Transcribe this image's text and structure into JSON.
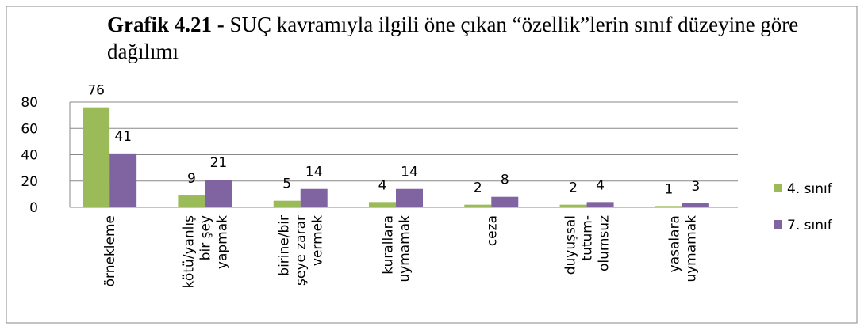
{
  "chart_data": {
    "type": "bar",
    "title_label": "Grafik 4.21 -",
    "title": "SUÇ kavramıyla ilgili öne çıkan “özellik”lerin sınıf düzeyine göre dağılımı",
    "categories": [
      [
        "örnekleme"
      ],
      [
        "kötü/yanlış",
        "bir şey",
        "yapmak"
      ],
      [
        "birine/bir",
        "şeye zarar",
        "vermek"
      ],
      [
        "kurallara",
        "uymamak"
      ],
      [
        "ceza"
      ],
      [
        "duyuşsal",
        "tutum-",
        "olumsuz"
      ],
      [
        "yasalara",
        "uymamak"
      ]
    ],
    "series": [
      {
        "name": "4. sınıf",
        "color": "#9bbb59",
        "values": [
          76,
          9,
          5,
          4,
          2,
          2,
          1
        ]
      },
      {
        "name": "7. sınıf",
        "color": "#8064a2",
        "values": [
          41,
          21,
          14,
          14,
          8,
          4,
          3
        ]
      }
    ],
    "ylim": [
      0,
      80
    ],
    "yticks": [
      0,
      20,
      40,
      60,
      80
    ],
    "grid": true,
    "legend": "right"
  }
}
